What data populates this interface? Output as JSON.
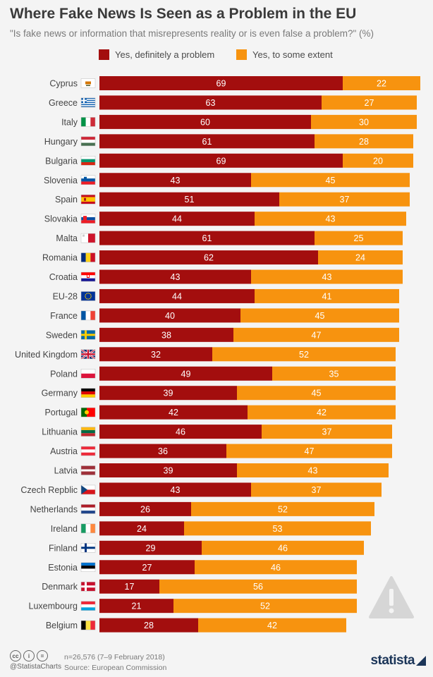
{
  "header": {
    "title": "Where Fake News Is Seen as a Problem in the EU",
    "subtitle": "\"Is fake news or information that misrepresents reality or is even false a problem?\" (%)"
  },
  "legend": {
    "definitely": "Yes, definitely a problem",
    "some_extent": "Yes, to some extent"
  },
  "colors": {
    "definitely": "#a30e0e",
    "some_extent": "#f7930f",
    "background": "#f4f4f4"
  },
  "footer": {
    "handle": "@StatistaCharts",
    "note": "n=26,576 (7–9 February 2018)",
    "source": "Source: European Commission",
    "brand": "statista"
  },
  "chart_data": {
    "type": "bar",
    "orientation": "horizontal",
    "stacked": true,
    "title": "Where Fake News Is Seen as a Problem in the EU",
    "subtitle": "\"Is fake news or information that misrepresents reality or is even false a problem?\" (%)",
    "legend_position": "top",
    "grid": false,
    "xlim": [
      0,
      100
    ],
    "categories": [
      "Cyprus",
      "Greece",
      "Italy",
      "Hungary",
      "Bulgaria",
      "Slovenia",
      "Spain",
      "Slovakia",
      "Malta",
      "Romania",
      "Croatia",
      "EU-28",
      "France",
      "Sweden",
      "United Kingdom",
      "Poland",
      "Germany",
      "Portugal",
      "Lithuania",
      "Austria",
      "Latvia",
      "Czech Repblic",
      "Netherlands",
      "Ireland",
      "Finland",
      "Estonia",
      "Denmark",
      "Luxembourg",
      "Belgium"
    ],
    "flags": [
      "cyprus-flag-icon",
      "greece-flag-icon",
      "italy-flag-icon",
      "hungary-flag-icon",
      "bulgaria-flag-icon",
      "slovenia-flag-icon",
      "spain-flag-icon",
      "slovakia-flag-icon",
      "malta-flag-icon",
      "romania-flag-icon",
      "croatia-flag-icon",
      "eu-flag-icon",
      "france-flag-icon",
      "sweden-flag-icon",
      "uk-flag-icon",
      "poland-flag-icon",
      "germany-flag-icon",
      "portugal-flag-icon",
      "lithuania-flag-icon",
      "austria-flag-icon",
      "latvia-flag-icon",
      "czech-flag-icon",
      "netherlands-flag-icon",
      "ireland-flag-icon",
      "finland-flag-icon",
      "estonia-flag-icon",
      "denmark-flag-icon",
      "luxembourg-flag-icon",
      "belgium-flag-icon"
    ],
    "series": [
      {
        "name": "Yes, definitely a problem",
        "values": [
          69,
          63,
          60,
          61,
          69,
          43,
          51,
          44,
          61,
          62,
          43,
          44,
          40,
          38,
          32,
          49,
          39,
          42,
          46,
          36,
          39,
          43,
          26,
          24,
          29,
          27,
          17,
          21,
          28
        ]
      },
      {
        "name": "Yes, to some extent",
        "values": [
          22,
          27,
          30,
          28,
          20,
          45,
          37,
          43,
          25,
          24,
          43,
          41,
          45,
          47,
          52,
          35,
          45,
          42,
          37,
          47,
          43,
          37,
          52,
          53,
          46,
          46,
          56,
          52,
          42
        ]
      }
    ]
  }
}
